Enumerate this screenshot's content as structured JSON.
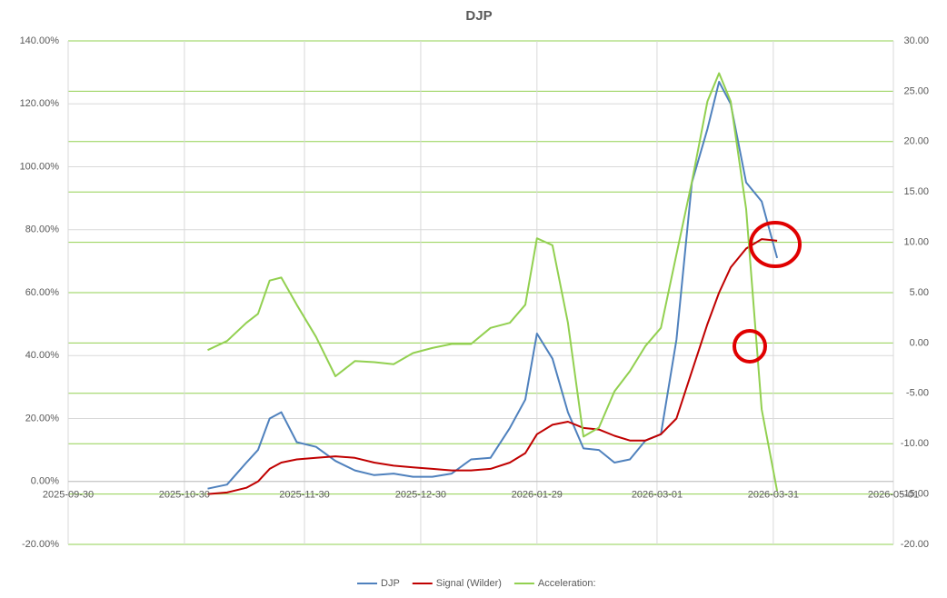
{
  "chart_data": {
    "type": "line",
    "title": "DJP",
    "x": [
      "2025-11-05",
      "2025-11-10",
      "2025-11-15",
      "2025-11-18",
      "2025-11-21",
      "2025-11-24",
      "2025-11-28",
      "2025-12-03",
      "2025-12-08",
      "2025-12-13",
      "2025-12-18",
      "2025-12-23",
      "2025-12-28",
      "2026-01-02",
      "2026-01-07",
      "2026-01-12",
      "2026-01-17",
      "2026-01-22",
      "2026-01-26",
      "2026-01-29",
      "2026-02-02",
      "2026-02-06",
      "2026-02-10",
      "2026-02-14",
      "2026-02-18",
      "2026-02-22",
      "2026-02-26",
      "2026-03-02",
      "2026-03-06",
      "2026-03-10",
      "2026-03-14",
      "2026-03-17",
      "2026-03-20",
      "2026-03-24",
      "2026-03-28",
      "2026-04-01"
    ],
    "series": [
      {
        "name": "DJP",
        "color": "#4f81bd",
        "values": [
          -2.3,
          -1,
          6,
          10,
          20,
          22,
          12.5,
          11,
          6.5,
          3.5,
          2,
          2.5,
          1.5,
          1.5,
          2.5,
          7,
          7.5,
          17,
          26,
          47,
          39,
          22,
          10.5,
          10,
          6,
          7,
          13,
          15,
          45,
          95,
          112,
          127,
          120,
          95,
          89,
          71
        ]
      },
      {
        "name": "Signal (Wilder)",
        "color": "#c00000",
        "values": [
          -4,
          -3.5,
          -2,
          0,
          4,
          6,
          7,
          7.5,
          8,
          7.5,
          6,
          5,
          4.5,
          4,
          3.5,
          3.5,
          4,
          6,
          9,
          15,
          18,
          19,
          17,
          16.5,
          14.5,
          13,
          13,
          15,
          20,
          35,
          50,
          60,
          68,
          74,
          77,
          76.5
        ]
      },
      {
        "name": "Acceleration:",
        "color": "#92d050",
        "axis": "y2",
        "values": [
          -0.7,
          0.2,
          2,
          2.9,
          6.2,
          6.5,
          3.8,
          0.6,
          -3.3,
          -1.8,
          -1.9,
          -2.1,
          -1,
          -0.5,
          -0.1,
          -0.1,
          1.5,
          2,
          3.8,
          10.4,
          9.7,
          2,
          -9.3,
          -8.4,
          -4.8,
          -2.8,
          -0.3,
          1.5,
          8.8,
          16,
          24,
          26.8,
          24,
          13.3,
          -6.6,
          -14.7
        ]
      }
    ],
    "xlim": [
      "2025-09-30",
      "2026-05-01"
    ],
    "xticks": [
      "2025-09-30",
      "2025-10-30",
      "2025-11-30",
      "2025-12-30",
      "2026-01-29",
      "2026-03-01",
      "2026-03-31",
      "2026-05-01"
    ],
    "ylim": [
      -20,
      140
    ],
    "yticks": [
      {
        "value": -20,
        "label": "-20.00%"
      },
      {
        "value": 0,
        "label": "0.00%"
      },
      {
        "value": 20,
        "label": "20.00%"
      },
      {
        "value": 40,
        "label": "40.00%"
      },
      {
        "value": 60,
        "label": "60.00%"
      },
      {
        "value": 80,
        "label": "80.00%"
      },
      {
        "value": 100,
        "label": "100.00%"
      },
      {
        "value": 120,
        "label": "120.00%"
      },
      {
        "value": 140,
        "label": "140.00%"
      }
    ],
    "y2lim": [
      -20,
      30
    ],
    "y2ticks": [
      {
        "value": -20,
        "label": "-20.00"
      },
      {
        "value": -15,
        "label": "-15.00"
      },
      {
        "value": -10,
        "label": "-10.00"
      },
      {
        "value": -5,
        "label": "-5.00"
      },
      {
        "value": 0,
        "label": "0.00"
      },
      {
        "value": 5,
        "label": "5.00"
      },
      {
        "value": 10,
        "label": "10.00"
      },
      {
        "value": 15,
        "label": "15.00"
      },
      {
        "value": 20,
        "label": "20.00"
      },
      {
        "value": 25,
        "label": "25.00"
      },
      {
        "value": 30,
        "label": "30.00"
      }
    ],
    "grid": true,
    "legend": "bottom"
  }
}
